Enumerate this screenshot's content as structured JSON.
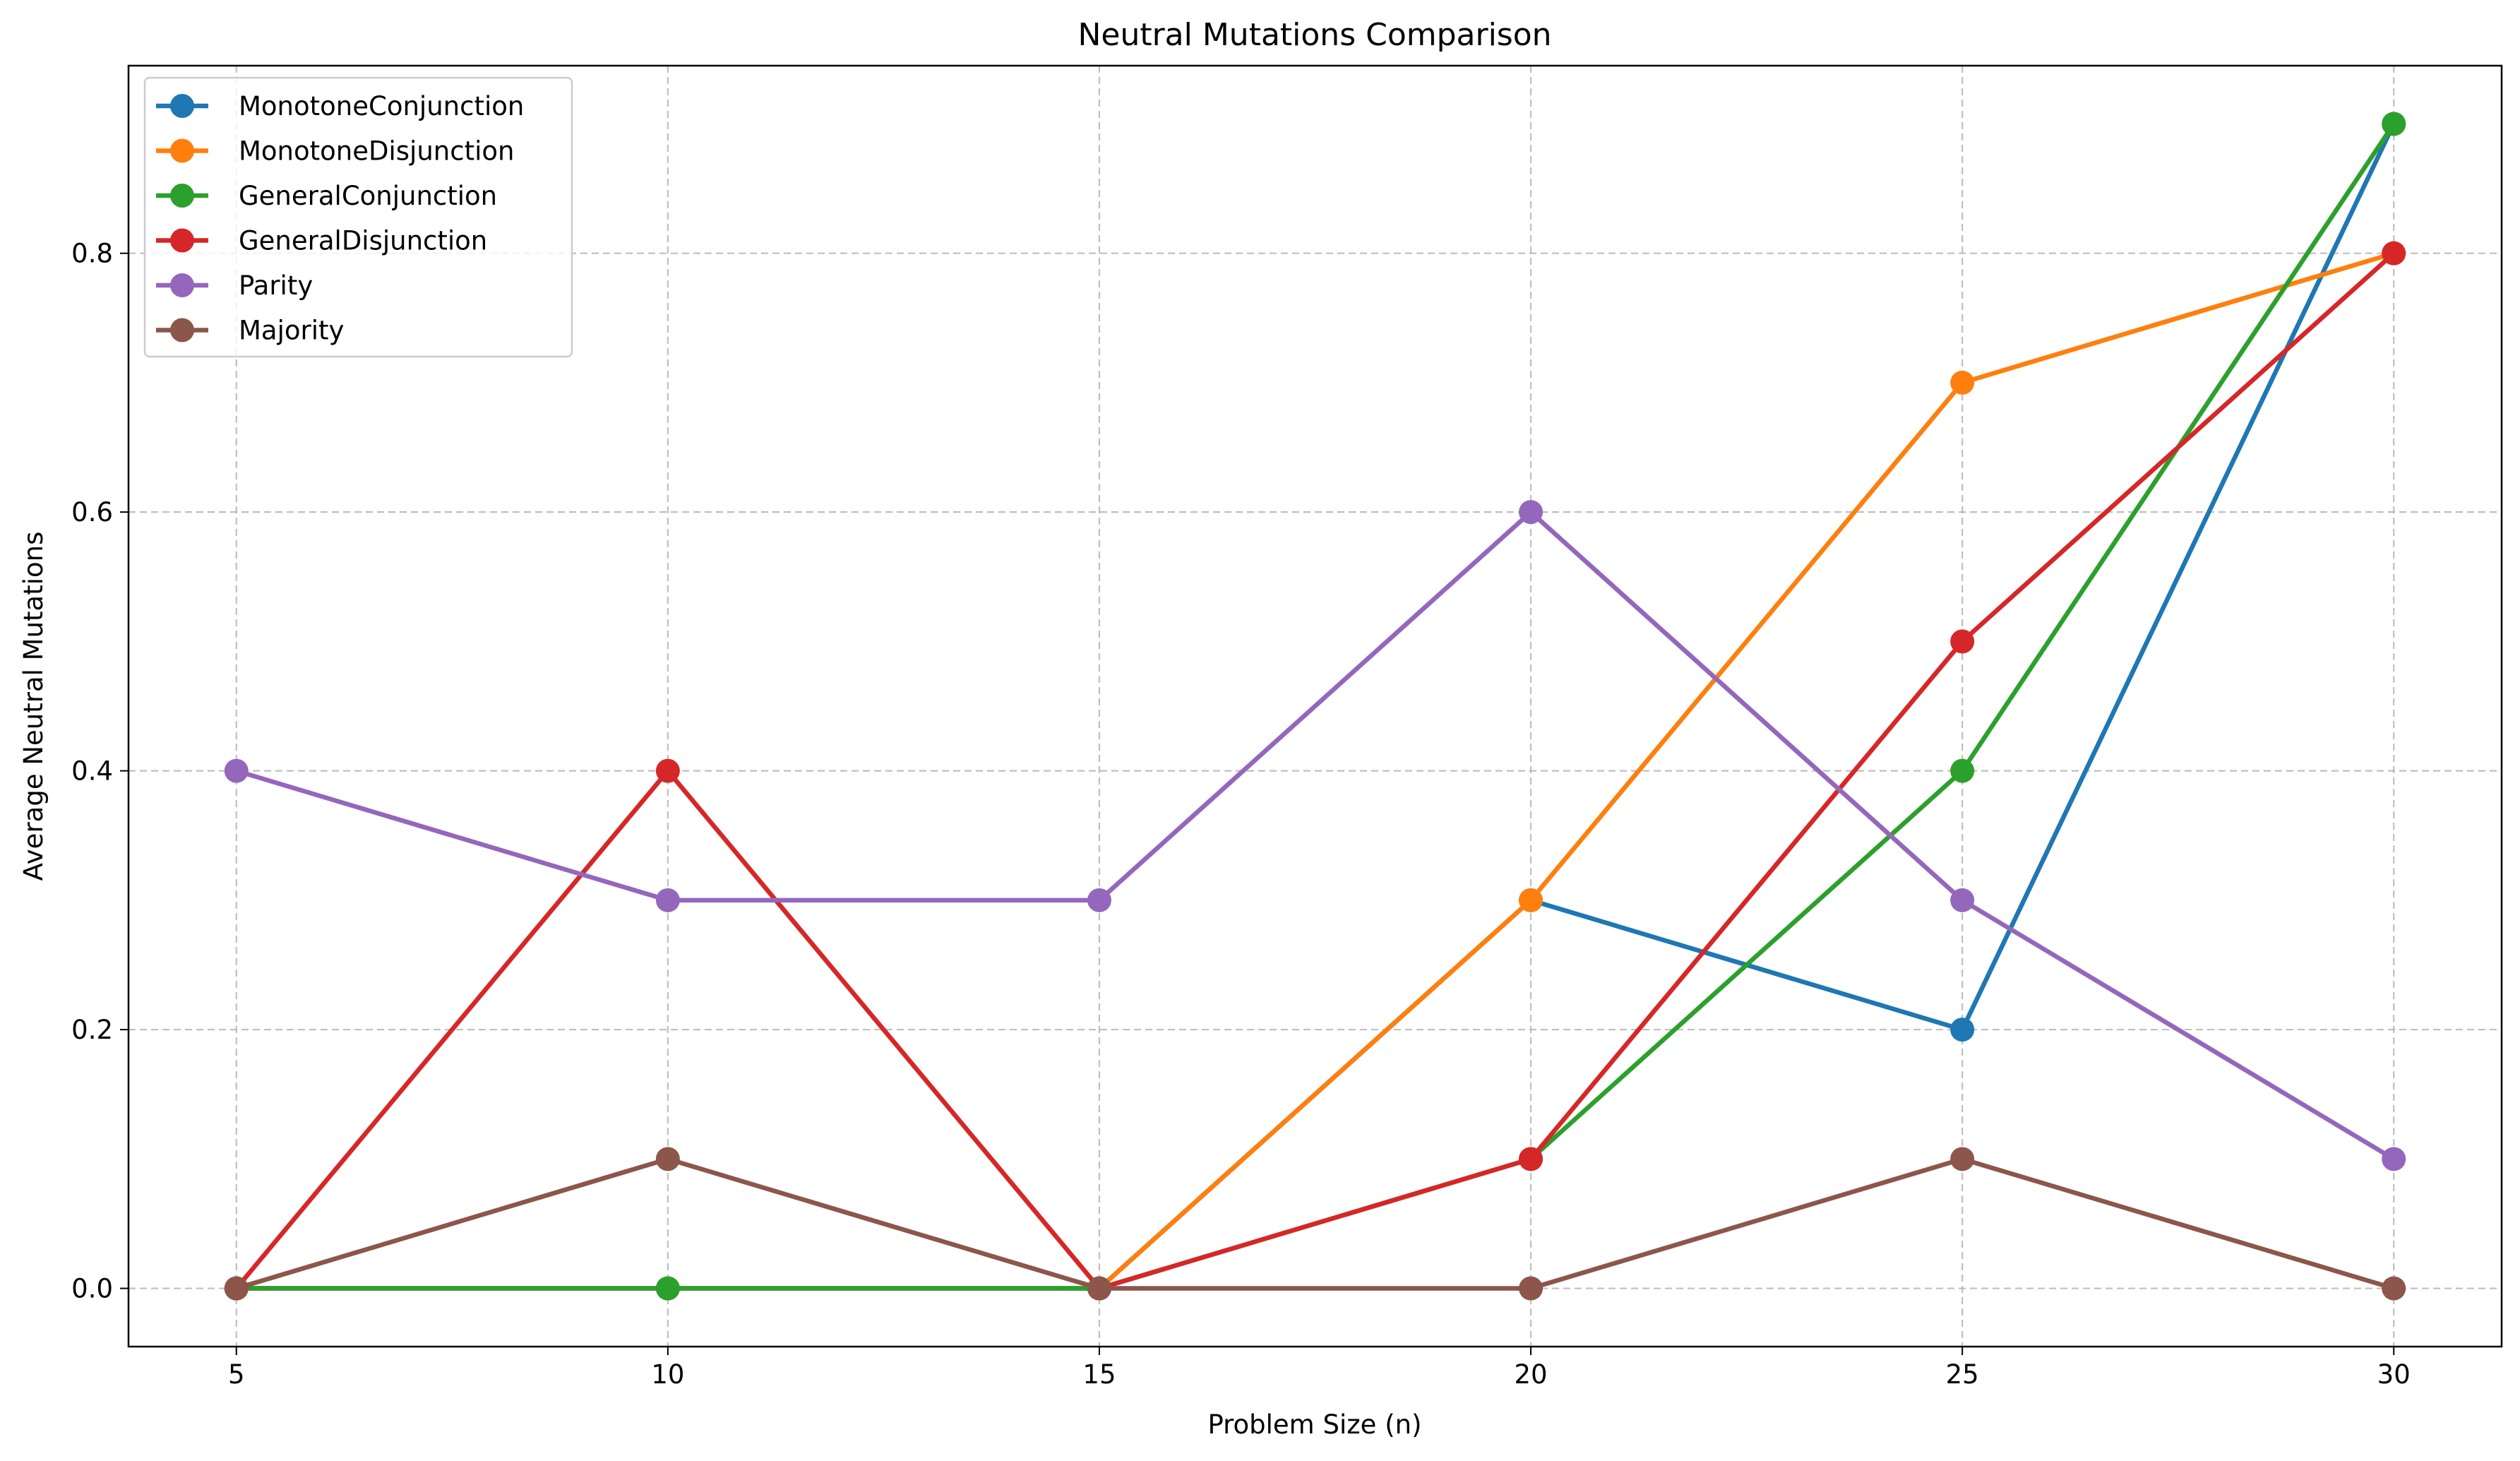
{
  "chart_data": {
    "type": "line",
    "title": "Neutral Mutations Comparison",
    "xlabel": "Problem Size (n)",
    "ylabel": "Average Neutral Mutations",
    "x": [
      5,
      10,
      15,
      20,
      25,
      30
    ],
    "xlim": [
      3.75,
      31.25
    ],
    "ylim": [
      -0.045,
      0.945
    ],
    "xticks": [
      "5",
      "10",
      "15",
      "20",
      "25",
      "30"
    ],
    "yticks": [
      "0.0",
      "0.2",
      "0.4",
      "0.6",
      "0.8"
    ],
    "grid": true,
    "legend_position": "top-left",
    "series": [
      {
        "name": "MonotoneConjunction",
        "color": "#1f77b4",
        "values": [
          0.0,
          0.0,
          0.0,
          0.3,
          0.2,
          0.9
        ]
      },
      {
        "name": "MonotoneDisjunction",
        "color": "#ff7f0e",
        "values": [
          0.0,
          0.0,
          0.0,
          0.3,
          0.7,
          0.8
        ]
      },
      {
        "name": "GeneralConjunction",
        "color": "#2ca02c",
        "values": [
          0.0,
          0.0,
          0.0,
          0.1,
          0.4,
          0.9
        ]
      },
      {
        "name": "GeneralDisjunction",
        "color": "#d62728",
        "values": [
          0.0,
          0.4,
          0.0,
          0.1,
          0.5,
          0.8
        ]
      },
      {
        "name": "Parity",
        "color": "#9467bd",
        "values": [
          0.4,
          0.3,
          0.3,
          0.6,
          0.3,
          0.1
        ]
      },
      {
        "name": "Majority",
        "color": "#8c564b",
        "values": [
          0.0,
          0.1,
          0.0,
          0.0,
          0.1,
          0.0
        ]
      }
    ]
  }
}
